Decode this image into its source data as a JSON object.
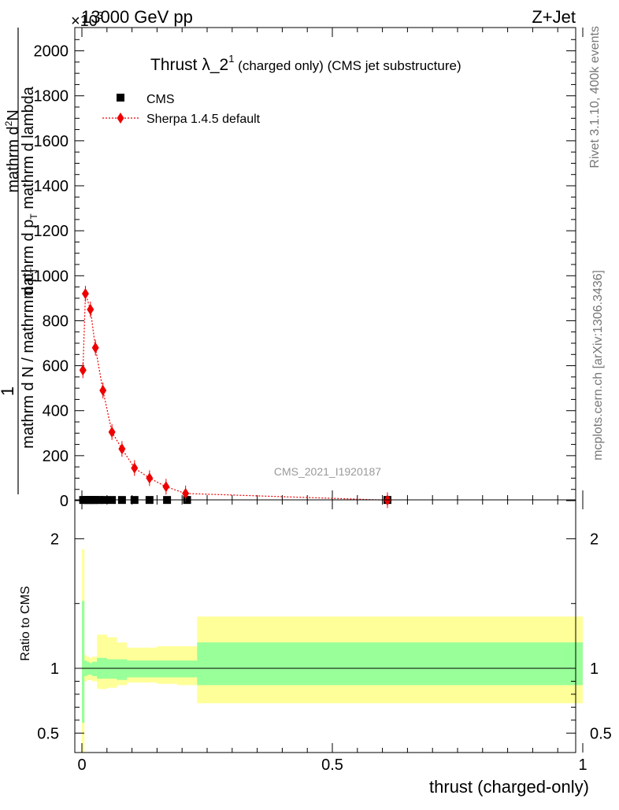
{
  "header": {
    "energy_label": "13000 GeV pp",
    "process_label": "Z+Jet",
    "multiplier": "×10",
    "multiplier_exp": "3"
  },
  "side_labels": {
    "rivet": "Rivet 3.1.10,  400k events",
    "mcplots": "mcplots.cern.ch [arXiv:1306.3436]"
  },
  "chart_data": [
    {
      "type": "line",
      "panel": "main",
      "title_main": "Thrust λ_2",
      "title_sup": "1",
      "title_rest": " (charged only) (CMS jet substructure)",
      "ylabel_left": "1",
      "ylabel_num": "mathrm d",
      "ylabel_num_sup": "2",
      "ylabel_num_n": "N",
      "ylabel_top": "mathrm d p",
      "ylabel_top_sub": "T",
      "ylabel_top_rest": " mathrm d lambda",
      "ylabel_den": "mathrm d N / mathrm d p",
      "ylabel_den_sub": "T",
      "watermark": "CMS_2021_I1920187",
      "xlim": [
        0,
        1
      ],
      "ylim": [
        0,
        2100
      ],
      "y_ticks": [
        0,
        200,
        400,
        600,
        800,
        1000,
        1200,
        1400,
        1600,
        1800,
        2000
      ],
      "legend": [
        "CMS",
        "Sherpa 1.4.5 default"
      ],
      "legend_position": "top-left",
      "series": [
        {
          "name": "CMS",
          "marker": "square",
          "color": "#000000",
          "x": [
            0.0025,
            0.0075,
            0.0125,
            0.0175,
            0.0225,
            0.0275,
            0.035,
            0.045,
            0.06,
            0.08,
            0.105,
            0.135,
            0.17,
            0.21,
            0.61
          ],
          "y": [
            3,
            3,
            3,
            3,
            3,
            3,
            3,
            3,
            3,
            3,
            3,
            3,
            3,
            3,
            3
          ]
        },
        {
          "name": "Sherpa 1.4.5 default",
          "marker": "diamond",
          "color": "#ee0000",
          "x": [
            0.002,
            0.007,
            0.017,
            0.027,
            0.042,
            0.06,
            0.08,
            0.105,
            0.135,
            0.168,
            0.207,
            0.61
          ],
          "y": [
            580,
            920,
            850,
            680,
            490,
            305,
            230,
            145,
            100,
            62,
            32,
            2
          ]
        }
      ]
    },
    {
      "type": "area",
      "panel": "ratio",
      "ylabel": "Ratio to CMS",
      "xlabel": "thrust (charged-only)",
      "xlim": [
        0,
        1
      ],
      "ylim": [
        0.35,
        2.3
      ],
      "x_ticks": [
        "0",
        "0.5",
        "1"
      ],
      "y_ticks": [
        "0.5",
        "1",
        "2"
      ],
      "reference_line": 1,
      "bands": {
        "edges": [
          0,
          0.005,
          0.01,
          0.015,
          0.02,
          0.025,
          0.03,
          0.04,
          0.05,
          0.07,
          0.09,
          0.12,
          0.15,
          0.19,
          0.23,
          1.0
        ],
        "green_lo": [
          0.58,
          0.94,
          0.95,
          0.95,
          0.94,
          0.94,
          0.92,
          0.92,
          0.92,
          0.91,
          0.93,
          0.93,
          0.93,
          0.93,
          0.87
        ],
        "green_hi": [
          1.52,
          1.06,
          1.05,
          1.04,
          1.05,
          1.05,
          1.08,
          1.08,
          1.07,
          1.07,
          1.06,
          1.06,
          1.06,
          1.06,
          1.2
        ],
        "yellow_lo": [
          0.35,
          0.9,
          0.91,
          0.91,
          0.9,
          0.9,
          0.84,
          0.84,
          0.85,
          0.87,
          0.89,
          0.89,
          0.88,
          0.87,
          0.73
        ],
        "yellow_hi": [
          1.92,
          1.1,
          1.09,
          1.08,
          1.09,
          1.09,
          1.26,
          1.26,
          1.24,
          1.2,
          1.16,
          1.16,
          1.17,
          1.17,
          1.4
        ]
      },
      "colors": {
        "green": "#99ff99",
        "yellow": "#ffff99"
      }
    }
  ]
}
